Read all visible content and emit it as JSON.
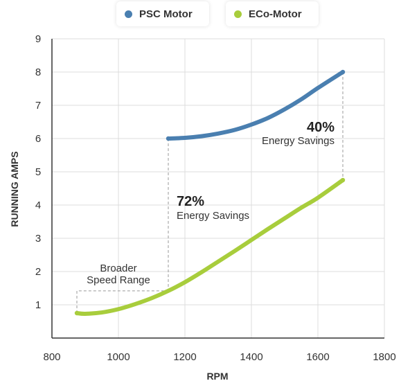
{
  "chart_data": {
    "type": "line",
    "xlabel": "RPM",
    "ylabel": "RUNNING AMPS",
    "xlim": [
      800,
      1800
    ],
    "ylim": [
      0,
      9
    ],
    "x_ticks": [
      "800",
      "1000",
      "1200",
      "1400",
      "1600",
      "1800"
    ],
    "y_ticks": [
      "1",
      "2",
      "3",
      "4",
      "5",
      "6",
      "7",
      "8",
      "9"
    ],
    "grid": true,
    "legend_placement": "top-center",
    "series": [
      {
        "name": "PSC Motor",
        "color": "#4a7fb0",
        "points": [
          [
            1150,
            6.0
          ],
          [
            1200,
            6.02
          ],
          [
            1250,
            6.07
          ],
          [
            1300,
            6.15
          ],
          [
            1350,
            6.26
          ],
          [
            1400,
            6.42
          ],
          [
            1450,
            6.62
          ],
          [
            1500,
            6.88
          ],
          [
            1550,
            7.18
          ],
          [
            1600,
            7.52
          ],
          [
            1675,
            8.0
          ]
        ]
      },
      {
        "name": "ECo-Motor",
        "color": "#a8cd3c",
        "points": [
          [
            875,
            0.75
          ],
          [
            900,
            0.73
          ],
          [
            950,
            0.77
          ],
          [
            1000,
            0.87
          ],
          [
            1050,
            1.02
          ],
          [
            1100,
            1.2
          ],
          [
            1150,
            1.42
          ],
          [
            1200,
            1.68
          ],
          [
            1250,
            1.98
          ],
          [
            1300,
            2.3
          ],
          [
            1350,
            2.62
          ],
          [
            1400,
            2.95
          ],
          [
            1450,
            3.28
          ],
          [
            1500,
            3.6
          ],
          [
            1550,
            3.92
          ],
          [
            1600,
            4.22
          ],
          [
            1675,
            4.75
          ]
        ]
      }
    ],
    "annotations": {
      "savings_40": {
        "percent": "40%",
        "text": "Energy Savings"
      },
      "savings_72": {
        "percent": "72%",
        "text": "Energy Savings"
      },
      "broader": {
        "line1": "Broader",
        "line2": "Speed Range"
      }
    }
  }
}
